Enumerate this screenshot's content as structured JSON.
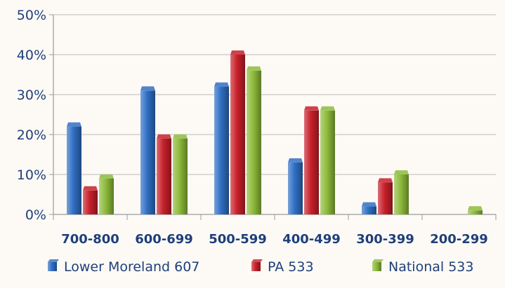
{
  "chart_data": {
    "type": "bar",
    "categories": [
      "700-800",
      "600-699",
      "500-599",
      "400-499",
      "300-399",
      "200-299"
    ],
    "series": [
      {
        "name": "Lower Moreland 607",
        "color": "#2f6fc4",
        "values": [
          22,
          31,
          32,
          13,
          2,
          0
        ]
      },
      {
        "name": "PA 533",
        "color": "#c8202a",
        "values": [
          6,
          19,
          40,
          26,
          8,
          0
        ]
      },
      {
        "name": "National 533",
        "color": "#8dbb3a",
        "values": [
          9,
          19,
          36,
          26,
          10,
          1
        ]
      }
    ],
    "y_ticks": [
      "0%",
      "10%",
      "20%",
      "30%",
      "40%",
      "50%"
    ],
    "ylim": [
      0,
      50
    ],
    "grid": true,
    "legend": "bottom"
  }
}
